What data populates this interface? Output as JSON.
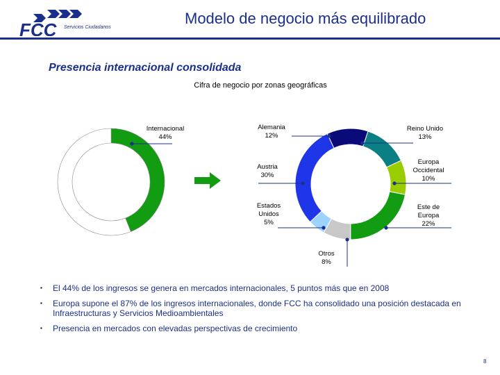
{
  "header": {
    "logo_text": "FCC",
    "brand_subtitle": "Servicios Ciudadanos",
    "slide_title": "Modelo de negocio más equilibrado"
  },
  "section_title": "Presencia internacional consolidada",
  "colors": {
    "primary": "#1a2f8a",
    "green": "#119c11"
  },
  "arrow_icon": "right-arrow-icon",
  "chart_data": [
    {
      "type": "pie",
      "donut": true,
      "title": "",
      "labels": [
        {
          "name_lines": [
            "Internacional"
          ],
          "value_text": "44%"
        }
      ],
      "slices": [
        {
          "name": "Internacional",
          "value": 44,
          "color": "#119c11"
        },
        {
          "name": "",
          "value": 56,
          "color": "#ffffff"
        }
      ]
    },
    {
      "type": "pie",
      "donut": true,
      "title": "Cifra de negocio por zonas geográficas",
      "slices": [
        {
          "name": "Alemania",
          "name_lines": [
            "Alemania"
          ],
          "value": 12,
          "value_text": "12%",
          "color": "#0a0a78"
        },
        {
          "name": "Reino Unido",
          "name_lines": [
            "Reino Unido"
          ],
          "value": 13,
          "value_text": "13%",
          "color": "#0b7f84"
        },
        {
          "name": "Europa Occidental",
          "name_lines": [
            "Europa",
            "Occidental"
          ],
          "value": 10,
          "value_text": "10%",
          "color": "#9acd00"
        },
        {
          "name": "Este de Europa",
          "name_lines": [
            "Este de",
            "Europa"
          ],
          "value": 22,
          "value_text": "22%",
          "color": "#119c11"
        },
        {
          "name": "Otros",
          "name_lines": [
            "Otros"
          ],
          "value": 8,
          "value_text": "8%",
          "color": "#c8c8c8"
        },
        {
          "name": "Estados Unidos",
          "name_lines": [
            "Estados",
            "Unidos"
          ],
          "value": 5,
          "value_text": "5%",
          "color": "#9fd3ff"
        },
        {
          "name": "Austria",
          "name_lines": [
            "Austria"
          ],
          "value": 30,
          "value_text": "30%",
          "color": "#1f35e8"
        }
      ]
    }
  ],
  "bullets": [
    "El 44% de los ingresos se genera en mercados internacionales, 5 puntos más que en 2008",
    "Europa supone el 87% de los ingresos internacionales, donde FCC ha consolidado una posición destacada en Infraestructuras y Servicios Medioambientales",
    "Presencia en mercados con elevadas perspectivas de crecimiento"
  ],
  "bullet_marker": "▪",
  "page_number": "8"
}
